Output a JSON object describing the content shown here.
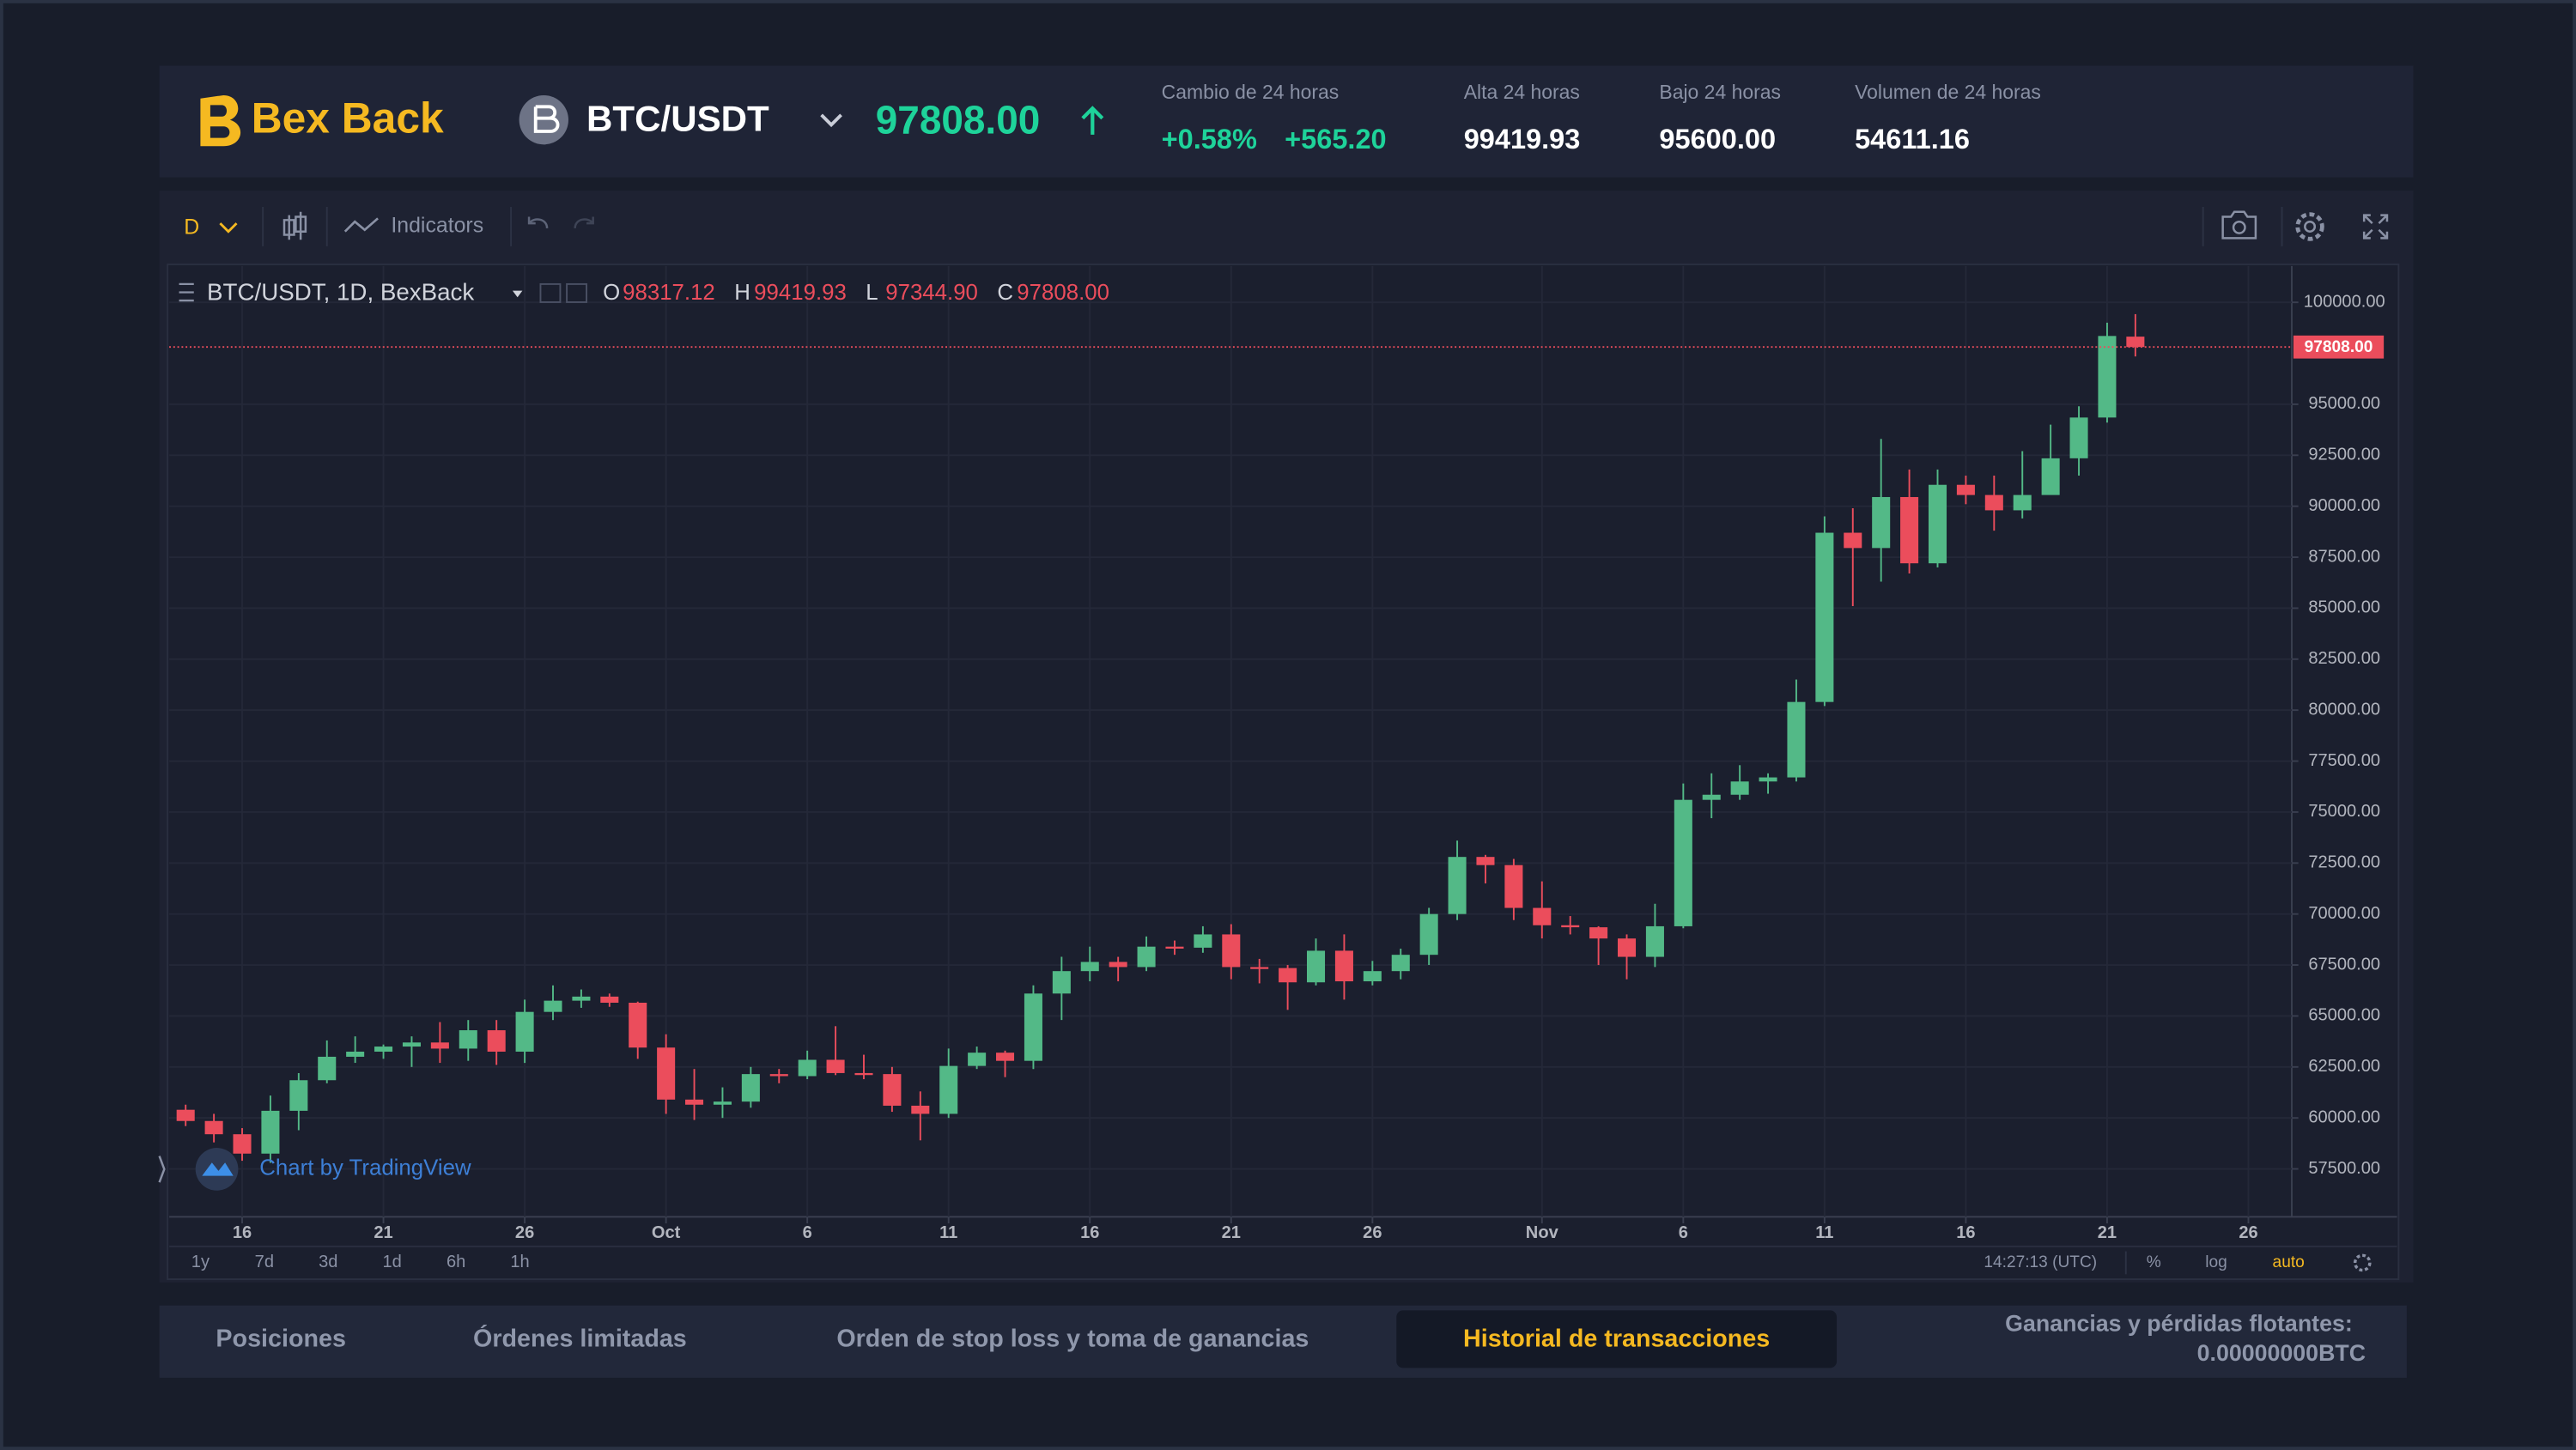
{
  "header": {
    "logo": "Bex Back",
    "pair": "BTC/USDT",
    "price": "97808.00",
    "stats": [
      {
        "label": "Cambio de 24 horas",
        "values": [
          "+0.58%",
          "+565.20"
        ]
      },
      {
        "label": "Alta 24 horas",
        "values": [
          "99419.93"
        ]
      },
      {
        "label": "Bajo 24 horas",
        "values": [
          "95600.00"
        ]
      },
      {
        "label": "Volumen de 24 horas",
        "values": [
          "54611.16"
        ]
      }
    ]
  },
  "toolbar": {
    "interval": "D",
    "indicators": "Indicators"
  },
  "legend": {
    "symbol": "BTC/USDT, 1D, BexBack",
    "ohlc": [
      {
        "key": "O",
        "value": "98317.12"
      },
      {
        "key": "H",
        "value": "99419.93"
      },
      {
        "key": "L",
        "value": "97344.90"
      },
      {
        "key": "C",
        "value": "97808.00"
      }
    ]
  },
  "chart_data": {
    "type": "candlestick",
    "x": [
      "09-14",
      "09-15",
      "09-16",
      "09-17",
      "09-18",
      "09-19",
      "09-20",
      "09-21",
      "09-22",
      "09-23",
      "09-24",
      "09-25",
      "09-26",
      "09-27",
      "09-28",
      "09-29",
      "09-30",
      "10-01",
      "10-02",
      "10-03",
      "10-04",
      "10-05",
      "10-06",
      "10-07",
      "10-08",
      "10-09",
      "10-10",
      "10-11",
      "10-12",
      "10-13",
      "10-14",
      "10-15",
      "10-16",
      "10-17",
      "10-18",
      "10-19",
      "10-20",
      "10-21",
      "10-22",
      "10-23",
      "10-24",
      "10-25",
      "10-26",
      "10-27",
      "10-28",
      "10-29",
      "10-30",
      "10-31",
      "11-01",
      "11-02",
      "11-03",
      "11-04",
      "11-05",
      "11-06",
      "11-07",
      "11-08",
      "11-09",
      "11-10",
      "11-11",
      "11-12",
      "11-13",
      "11-14",
      "11-15",
      "11-16",
      "11-17",
      "11-18",
      "11-19",
      "11-20",
      "11-21",
      "11-22"
    ],
    "open": [
      60400,
      59850,
      59200,
      58250,
      60350,
      61850,
      63000,
      63250,
      63500,
      63700,
      63400,
      64300,
      63250,
      65200,
      65750,
      65950,
      65650,
      63450,
      60900,
      60650,
      60800,
      62150,
      62050,
      62850,
      62200,
      62150,
      60600,
      60200,
      62550,
      63200,
      62800,
      66100,
      67200,
      67650,
      67400,
      68400,
      68350,
      69000,
      67400,
      67350,
      66650,
      68200,
      66700,
      67200,
      68000,
      70000,
      72800,
      72400,
      70300,
      69450,
      69350,
      68800,
      67900,
      69400,
      75600,
      75850,
      76500,
      76700,
      80400,
      88700,
      87950,
      90450,
      87200,
      91050,
      90550,
      89800,
      90550,
      92350,
      94350,
      98317.12
    ],
    "high": [
      60650,
      60200,
      59500,
      61100,
      62200,
      63800,
      64000,
      63600,
      64000,
      64700,
      64800,
      64800,
      65800,
      66500,
      66300,
      66100,
      65700,
      64100,
      62400,
      61500,
      62500,
      62400,
      63300,
      64500,
      63100,
      62500,
      61300,
      63400,
      63500,
      63300,
      66500,
      67900,
      68400,
      67900,
      68900,
      68700,
      69400,
      69500,
      67800,
      67500,
      68800,
      69000,
      67700,
      68300,
      70300,
      73600,
      72900,
      72700,
      71600,
      69900,
      69400,
      69000,
      70500,
      76400,
      76900,
      77300,
      76900,
      81500,
      89500,
      89900,
      93300,
      91800,
      91800,
      91500,
      91500,
      92700,
      94000,
      94900,
      99000,
      99419.93
    ],
    "low": [
      59600,
      58800,
      57900,
      57800,
      59400,
      61700,
      62700,
      62900,
      62500,
      62700,
      62800,
      62600,
      62700,
      64800,
      65400,
      65450,
      62900,
      60200,
      59900,
      60000,
      60500,
      61700,
      61900,
      62100,
      61900,
      60300,
      58900,
      60000,
      62400,
      62000,
      62400,
      64800,
      66700,
      66700,
      67200,
      68000,
      68100,
      66800,
      66600,
      65300,
      66500,
      65800,
      66500,
      66800,
      67500,
      69700,
      71500,
      69700,
      68800,
      69000,
      67500,
      66800,
      67400,
      69300,
      74700,
      75600,
      75900,
      76500,
      80200,
      85100,
      86300,
      86700,
      87000,
      90100,
      88800,
      89400,
      90900,
      91500,
      94100,
      97344.9
    ],
    "close": [
      59850,
      59200,
      58250,
      60350,
      61850,
      63000,
      63250,
      63500,
      63700,
      63400,
      64300,
      63250,
      65200,
      65750,
      65950,
      65650,
      63450,
      60900,
      60650,
      60800,
      62150,
      62050,
      62850,
      62200,
      62150,
      60600,
      60200,
      62550,
      63200,
      62800,
      66100,
      67200,
      67650,
      67400,
      68400,
      68350,
      69000,
      67400,
      67350,
      66650,
      68200,
      66700,
      67200,
      68000,
      70000,
      72800,
      72400,
      70300,
      69450,
      69350,
      68800,
      67900,
      69400,
      75600,
      75850,
      76500,
      76700,
      80400,
      88700,
      87950,
      90450,
      87200,
      91050,
      90550,
      89800,
      90550,
      92350,
      94350,
      98350,
      97808
    ],
    "colors": {
      "up": "#53b987",
      "down": "#eb4d5c"
    },
    "ylim": [
      55150,
      101780
    ],
    "yticks": [
      {
        "value": 57500,
        "label": "57500.00"
      },
      {
        "value": 60000,
        "label": "60000.00"
      },
      {
        "value": 62500,
        "label": "62500.00"
      },
      {
        "value": 65000,
        "label": "65000.00"
      },
      {
        "value": 67500,
        "label": "67500.00"
      },
      {
        "value": 70000,
        "label": "70000.00"
      },
      {
        "value": 72500,
        "label": "72500.00"
      },
      {
        "value": 75000,
        "label": "75000.00"
      },
      {
        "value": 77500,
        "label": "77500.00"
      },
      {
        "value": 80000,
        "label": "80000.00"
      },
      {
        "value": 82500,
        "label": "82500.00"
      },
      {
        "value": 85000,
        "label": "85000.00"
      },
      {
        "value": 87500,
        "label": "87500.00"
      },
      {
        "value": 90000,
        "label": "90000.00"
      },
      {
        "value": 92500,
        "label": "92500.00"
      },
      {
        "value": 95000,
        "label": "95000.00"
      },
      {
        "value": 100000,
        "label": "100000.00"
      }
    ],
    "xticks": [
      {
        "value": "09-16",
        "label": "16"
      },
      {
        "value": "09-21",
        "label": "21"
      },
      {
        "value": "09-26",
        "label": "26"
      },
      {
        "value": "10-01",
        "label": "Oct"
      },
      {
        "value": "10-06",
        "label": "6"
      },
      {
        "value": "10-11",
        "label": "11"
      },
      {
        "value": "10-16",
        "label": "16"
      },
      {
        "value": "10-21",
        "label": "21"
      },
      {
        "value": "10-26",
        "label": "26"
      },
      {
        "value": "11-01",
        "label": "Nov"
      },
      {
        "value": "11-06",
        "label": "6"
      },
      {
        "value": "11-11",
        "label": "11"
      },
      {
        "value": "11-16",
        "label": "16"
      },
      {
        "value": "11-21",
        "label": "21"
      },
      {
        "value": "11-26",
        "label": "26"
      }
    ],
    "last_price": {
      "value": 97808,
      "label": "97808.00"
    },
    "grid": true
  },
  "chart_footer": {
    "ranges": [
      "1y",
      "7d",
      "3d",
      "1d",
      "6h",
      "1h"
    ],
    "time": "14:27:13 (UTC)",
    "options": [
      "%",
      "log",
      "auto"
    ],
    "watermark": "Chart by TradingView"
  },
  "tabs": {
    "items": [
      "Posiciones",
      "Órdenes limitadas",
      "Orden de stop loss y toma de ganancias",
      "Historial de transacciones"
    ],
    "active": 3,
    "pnl_label": "Ganancias y pérdidas flotantes:",
    "pnl_value": "0.00000000BTC"
  }
}
